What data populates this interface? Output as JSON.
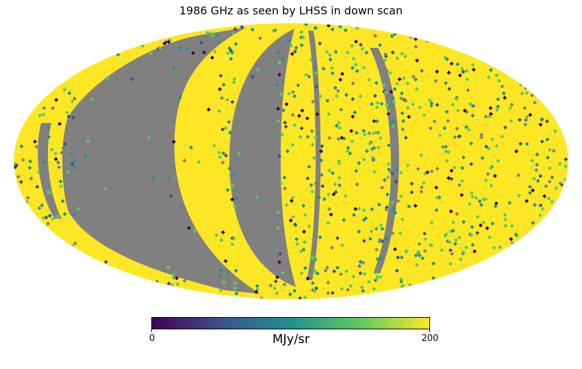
{
  "title": "1986 GHz as seen by LHSS in down scan",
  "projection": "mollweide",
  "colormap": {
    "name": "viridis",
    "stops": [
      "#440154",
      "#3b528b",
      "#21918c",
      "#5ec962",
      "#fde725"
    ],
    "min_label": "0",
    "max_label": "200",
    "unit": "MJy/sr"
  },
  "colors": {
    "missing": "#808080",
    "saturated": "#fde725",
    "bad_stripes": "#808080"
  }
}
